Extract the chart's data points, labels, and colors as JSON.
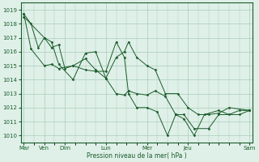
{
  "background_color": "#dff0e8",
  "grid_color": "#aaccbb",
  "line_color": "#1a5c2a",
  "xlabel": "Pression niveau de la mer( hPa )",
  "ylim": [
    1009.5,
    1019.5
  ],
  "xlim": [
    -0.15,
    11.15
  ],
  "day_positions": [
    0,
    1,
    2,
    4,
    6,
    8,
    11
  ],
  "day_labels": [
    "Mar",
    "Ven",
    "Dim",
    "Lun",
    "Mer",
    "Jeu",
    "Sam"
  ],
  "s1_x": [
    0.0,
    0.35,
    0.7,
    1.0,
    1.35,
    1.7,
    2.0,
    2.4,
    3.0,
    3.5,
    4.0,
    4.5,
    4.9,
    5.1,
    5.5,
    6.0,
    6.4,
    6.9,
    7.5,
    8.0,
    8.5,
    9.0,
    9.5,
    10.0,
    11.0
  ],
  "s1_y": [
    1018.7,
    1018.0,
    1016.3,
    1017.0,
    1016.3,
    1016.5,
    1014.8,
    1015.0,
    1015.5,
    1014.7,
    1014.1,
    1015.6,
    1016.0,
    1016.7,
    1015.6,
    1015.0,
    1014.7,
    1013.0,
    1013.0,
    1012.0,
    1011.5,
    1011.5,
    1011.6,
    1012.0,
    1011.8
  ],
  "s2_x": [
    0.0,
    0.35,
    1.0,
    1.35,
    1.7,
    2.4,
    3.0,
    3.5,
    4.0,
    4.5,
    4.9,
    5.1,
    5.5,
    6.0,
    6.5,
    7.0,
    7.4,
    7.8,
    8.3,
    9.0,
    9.5,
    10.5,
    11.0
  ],
  "s2_y": [
    1018.7,
    1016.2,
    1015.0,
    1015.1,
    1014.8,
    1015.0,
    1014.7,
    1014.6,
    1014.6,
    1016.7,
    1015.6,
    1013.0,
    1012.0,
    1012.0,
    1011.7,
    1010.0,
    1011.5,
    1011.5,
    1010.5,
    1010.5,
    1011.5,
    1011.5,
    1011.8
  ],
  "s3_x": [
    0.0,
    1.0,
    1.35,
    1.7,
    2.4,
    3.0,
    3.5,
    4.0,
    4.5,
    4.9,
    5.1,
    5.5,
    6.0,
    6.4,
    6.9,
    7.4,
    7.8,
    8.3,
    8.8,
    9.5,
    10.0,
    10.5,
    11.0
  ],
  "s3_y": [
    1018.5,
    1017.0,
    1016.7,
    1015.1,
    1014.0,
    1015.9,
    1016.0,
    1014.1,
    1013.0,
    1012.9,
    1013.2,
    1013.0,
    1012.9,
    1013.2,
    1012.8,
    1011.5,
    1011.2,
    1010.0,
    1011.5,
    1011.8,
    1011.5,
    1011.8,
    1011.8
  ]
}
